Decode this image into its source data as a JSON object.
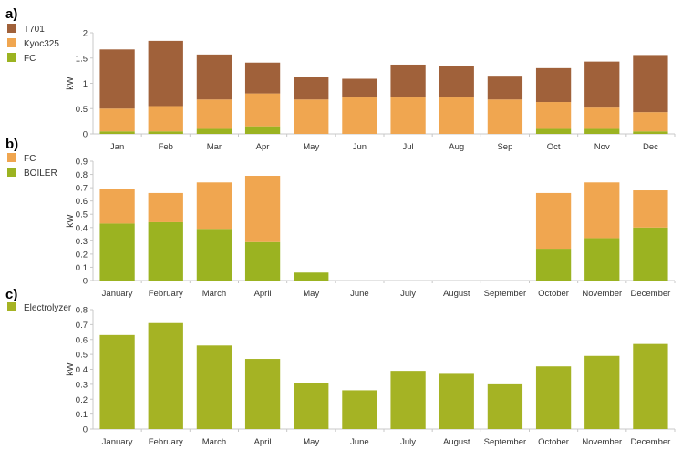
{
  "colors": {
    "T701": "#a0613a",
    "Kyoc325": "#f0a650",
    "FC_green": "#9bb321",
    "FC_orange": "#f0a650",
    "BOILER": "#9bb321",
    "Electrolyzer": "#a5b324"
  },
  "chart_data": [
    {
      "panel_label": "a)",
      "type": "bar",
      "stacked": true,
      "ylabel": "kW",
      "ylim": [
        0,
        2
      ],
      "yticks": [
        "0",
        "0.5",
        "1",
        "1.5",
        "2"
      ],
      "grid": false,
      "legend_position": "left",
      "categories": [
        "Jan",
        "Feb",
        "Mar",
        "Apr",
        "May",
        "Jun",
        "Jul",
        "Aug",
        "Sep",
        "Oct",
        "Nov",
        "Dec"
      ],
      "series": [
        {
          "name": "FC",
          "color_key": "FC_green",
          "values": [
            0.05,
            0.05,
            0.1,
            0.15,
            0,
            0,
            0,
            0,
            0,
            0.1,
            0.1,
            0.05
          ]
        },
        {
          "name": "Kyoc325",
          "color_key": "Kyoc325",
          "values": [
            0.45,
            0.5,
            0.58,
            0.65,
            0.68,
            0.72,
            0.72,
            0.72,
            0.68,
            0.53,
            0.42,
            0.38
          ]
        },
        {
          "name": "T701",
          "color_key": "T701",
          "values": [
            1.17,
            1.29,
            0.89,
            0.61,
            0.44,
            0.37,
            0.65,
            0.62,
            0.47,
            0.67,
            0.91,
            1.13
          ]
        }
      ],
      "legend_order": [
        "T701",
        "Kyoc325",
        "FC"
      ]
    },
    {
      "panel_label": "b)",
      "type": "bar",
      "stacked": true,
      "ylabel": "kW",
      "ylim": [
        0,
        0.9
      ],
      "yticks": [
        "0",
        "0.1",
        "0.2",
        "0.3",
        "0.4",
        "0.5",
        "0.6",
        "0.7",
        "0.8",
        "0.9"
      ],
      "grid": false,
      "legend_position": "left",
      "categories": [
        "January",
        "February",
        "March",
        "April",
        "May",
        "June",
        "July",
        "August",
        "September",
        "October",
        "November",
        "December"
      ],
      "series": [
        {
          "name": "BOILER",
          "color_key": "BOILER",
          "values": [
            0.43,
            0.44,
            0.39,
            0.29,
            0.06,
            0,
            0,
            0,
            0,
            0.24,
            0.32,
            0.4
          ]
        },
        {
          "name": "FC",
          "color_key": "FC_orange",
          "values": [
            0.26,
            0.22,
            0.35,
            0.5,
            0,
            0,
            0,
            0,
            0,
            0.42,
            0.42,
            0.28
          ]
        }
      ],
      "legend_order": [
        "FC",
        "BOILER"
      ]
    },
    {
      "panel_label": "c)",
      "type": "bar",
      "stacked": false,
      "ylabel": "kW",
      "ylim": [
        0,
        0.8
      ],
      "yticks": [
        "0",
        "0.1",
        "0.2",
        "0.3",
        "0.4",
        "0.5",
        "0.6",
        "0.7",
        "0.8"
      ],
      "grid": false,
      "legend_position": "left",
      "categories": [
        "January",
        "February",
        "March",
        "April",
        "May",
        "June",
        "July",
        "August",
        "September",
        "October",
        "November",
        "December"
      ],
      "series": [
        {
          "name": "Electrolyzer",
          "color_key": "Electrolyzer",
          "values": [
            0.63,
            0.71,
            0.56,
            0.47,
            0.31,
            0.26,
            0.39,
            0.37,
            0.3,
            0.42,
            0.49,
            0.57
          ]
        }
      ],
      "legend_order": [
        "Electrolyzer"
      ]
    }
  ]
}
